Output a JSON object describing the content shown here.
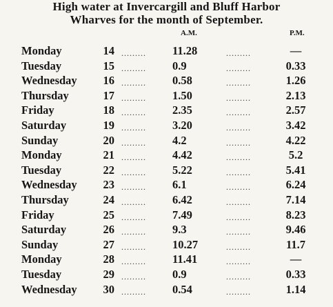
{
  "title": [
    "High water at Invercargill and Bluff Harbor",
    "Wharves for the month of September."
  ],
  "table": {
    "header": [
      "A.M.",
      "P.M."
    ],
    "rows": [
      [
        "Monday",
        "14",
        "11.28",
        "—"
      ],
      [
        "Tuesday",
        "15",
        "0.9",
        "0.33"
      ],
      [
        "Wednesday",
        "16",
        "0.58",
        "1.26"
      ],
      [
        "Thursday",
        "17",
        "1.50",
        "2.13"
      ],
      [
        "Friday",
        "18",
        "2.35",
        "2.57"
      ],
      [
        "Saturday",
        "19",
        "3.20",
        "3.42"
      ],
      [
        "Sunday",
        "20",
        "4.2",
        "4.22"
      ],
      [
        "Monday",
        "21",
        "4.42",
        "5.2"
      ],
      [
        "Tuesday",
        "22",
        "5.22",
        "5.41"
      ],
      [
        "Wednesday",
        "23",
        "6.1",
        "6.24"
      ],
      [
        "Thursday",
        "24",
        "6.42",
        "7.14"
      ],
      [
        "Friday",
        "25",
        "7.49",
        "8.23"
      ],
      [
        "Saturday",
        "26",
        "9.3",
        "9.46"
      ],
      [
        "Sunday",
        "27",
        "10.27",
        "11.7"
      ],
      [
        "Monday",
        "28",
        "11.41",
        "—"
      ],
      [
        "Tuesday",
        "29",
        "0.9",
        "0.33"
      ],
      [
        "Wednesday",
        "30",
        "0.54",
        "1.14"
      ]
    ]
  }
}
